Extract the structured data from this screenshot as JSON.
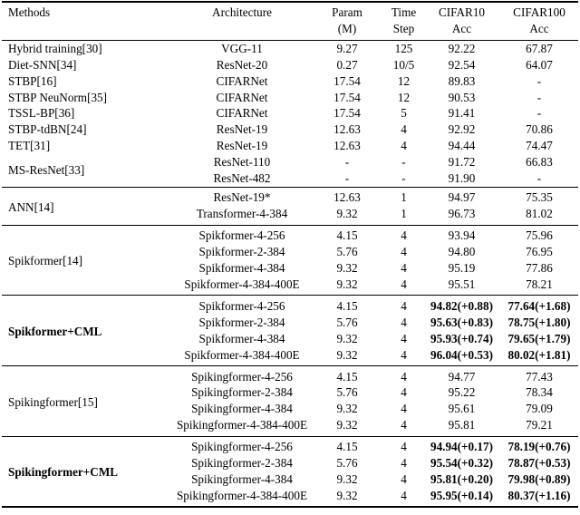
{
  "table": {
    "header": {
      "methods": "Methods",
      "architecture": "Architecture",
      "param_line1": "Param",
      "param_line2": "(M)",
      "time_line1": "Time",
      "time_line2": "Step",
      "cifar10_line1": "CIFAR10",
      "cifar10_line2": "Acc",
      "cifar100_line1": "CIFAR100",
      "cifar100_line2": "Acc"
    },
    "sections": [
      {
        "bold": false,
        "groups": [
          {
            "method": "Hybrid training[30]",
            "rows": [
              {
                "arch": "VGG-11",
                "param": "9.27",
                "time": "125",
                "c10": "92.22",
                "c100": "67.87"
              }
            ]
          },
          {
            "method": "Diet-SNN[34]",
            "rows": [
              {
                "arch": "ResNet-20",
                "param": "0.27",
                "time": "10/5",
                "c10": "92.54",
                "c100": "64.07"
              }
            ]
          },
          {
            "method": "STBP[16]",
            "rows": [
              {
                "arch": "CIFARNet",
                "param": "17.54",
                "time": "12",
                "c10": "89.83",
                "c100": "-"
              }
            ]
          },
          {
            "method": "STBP NeuNorm[35]",
            "rows": [
              {
                "arch": "CIFARNet",
                "param": "17.54",
                "time": "12",
                "c10": "90.53",
                "c100": "-"
              }
            ]
          },
          {
            "method": "TSSL-BP[36]",
            "rows": [
              {
                "arch": "CIFARNet",
                "param": "17.54",
                "time": "5",
                "c10": "91.41",
                "c100": "-"
              }
            ]
          },
          {
            "method": "STBP-tdBN[24]",
            "rows": [
              {
                "arch": "ResNet-19",
                "param": "12.63",
                "time": "4",
                "c10": "92.92",
                "c100": "70.86"
              }
            ]
          },
          {
            "method": "TET[31]",
            "rows": [
              {
                "arch": "ResNet-19",
                "param": "12.63",
                "time": "4",
                "c10": "94.44",
                "c100": "74.47"
              }
            ]
          },
          {
            "method": "MS-ResNet[33]",
            "rows": [
              {
                "arch": "ResNet-110",
                "param": "-",
                "time": "-",
                "c10": "91.72",
                "c100": "66.83"
              },
              {
                "arch": "ResNet-482",
                "param": "-",
                "time": "-",
                "c10": "91.90",
                "c100": "-"
              }
            ]
          }
        ]
      },
      {
        "bold": false,
        "groups": [
          {
            "method": "ANN[14]",
            "rows": [
              {
                "arch": "ResNet-19*",
                "param": "12.63",
                "time": "1",
                "c10": "94.97",
                "c100": "75.35"
              },
              {
                "arch": "Transformer-4-384",
                "param": "9.32",
                "time": "1",
                "c10": "96.73",
                "c100": "81.02"
              }
            ]
          }
        ]
      },
      {
        "bold": false,
        "groups": [
          {
            "method": "Spikformer[14]",
            "rows": [
              {
                "arch": "Spikformer-4-256",
                "param": "4.15",
                "time": "4",
                "c10": "93.94",
                "c100": "75.96"
              },
              {
                "arch": "Spikformer-2-384",
                "param": "5.76",
                "time": "4",
                "c10": "94.80",
                "c100": "76.95"
              },
              {
                "arch": "Spikformer-4-384",
                "param": "9.32",
                "time": "4",
                "c10": "95.19",
                "c100": "77.86"
              },
              {
                "arch": "Spikformer-4-384-400E",
                "param": "9.32",
                "time": "4",
                "c10": "95.51",
                "c100": "78.21"
              }
            ]
          }
        ]
      },
      {
        "bold": true,
        "groups": [
          {
            "method": "Spikformer+CML",
            "rows": [
              {
                "arch": "Spikformer-4-256",
                "param": "4.15",
                "time": "4",
                "c10": "94.82(+0.88)",
                "c100": "77.64(+1.68)"
              },
              {
                "arch": "Spikformer-2-384",
                "param": "5.76",
                "time": "4",
                "c10": "95.63(+0.83)",
                "c100": "78.75(+1.80)"
              },
              {
                "arch": "Spikformer-4-384",
                "param": "9.32",
                "time": "4",
                "c10": "95.93(+0.74)",
                "c100": "79.65(+1.79)"
              },
              {
                "arch": "Spikformer-4-384-400E",
                "param": "9.32",
                "time": "4",
                "c10": "96.04(+0.53)",
                "c100": "80.02(+1.81)"
              }
            ]
          }
        ]
      },
      {
        "bold": false,
        "groups": [
          {
            "method": "Spikingformer[15]",
            "rows": [
              {
                "arch": "Spikingformer-4-256",
                "param": "4.15",
                "time": "4",
                "c10": "94.77",
                "c100": "77.43"
              },
              {
                "arch": "Spikingformer-2-384",
                "param": "5.76",
                "time": "4",
                "c10": "95.22",
                "c100": "78.34"
              },
              {
                "arch": "Spikingformer-4-384",
                "param": "9.32",
                "time": "4",
                "c10": "95.61",
                "c100": "79.09"
              },
              {
                "arch": "Spikingformer-4-384-400E",
                "param": "9.32",
                "time": "4",
                "c10": "95.81",
                "c100": "79.21"
              }
            ]
          }
        ]
      },
      {
        "bold": true,
        "groups": [
          {
            "method": "Spikingformer+CML",
            "rows": [
              {
                "arch": "Spikingformer-4-256",
                "param": "4.15",
                "time": "4",
                "c10": "94.94(+0.17)",
                "c100": "78.19(+0.76)"
              },
              {
                "arch": "Spikingformer-2-384",
                "param": "5.76",
                "time": "4",
                "c10": "95.54(+0.32)",
                "c100": "78.87(+0.53)"
              },
              {
                "arch": "Spikingformer-4-384",
                "param": "9.32",
                "time": "4",
                "c10": "95.81(+0.20)",
                "c100": "79.98(+0.89)"
              },
              {
                "arch": "Spikingformer-4-384-400E",
                "param": "9.32",
                "time": "4",
                "c10": "95.95(+0.14)",
                "c100": "80.37(+1.16)"
              }
            ]
          }
        ]
      }
    ]
  }
}
